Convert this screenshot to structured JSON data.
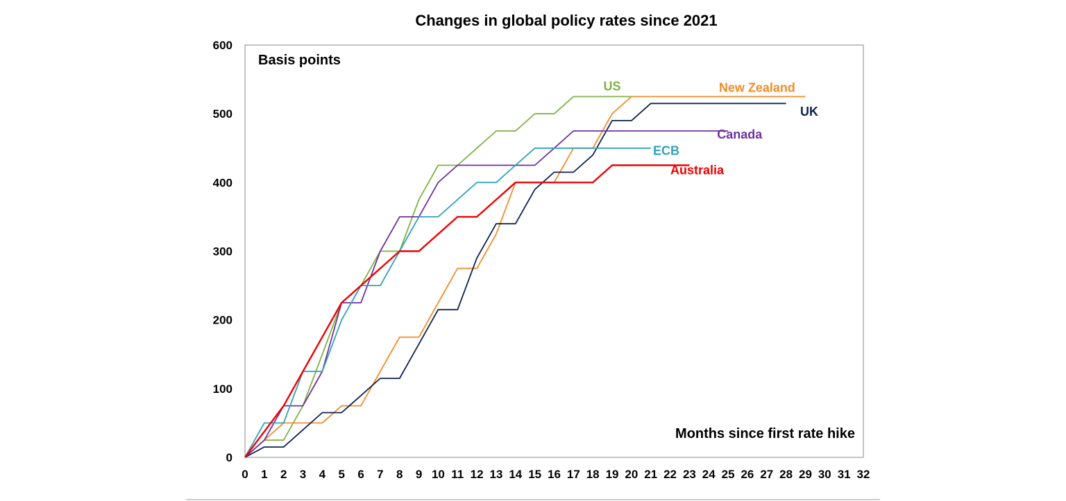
{
  "chart_data": {
    "type": "line",
    "title": "Changes in global policy rates since 2021",
    "ylabel": "Basis points",
    "xlabel": "Months since first rate hike",
    "xlim": [
      0,
      32
    ],
    "ylim": [
      0,
      600
    ],
    "x_ticks": [
      0,
      1,
      2,
      3,
      4,
      5,
      6,
      7,
      8,
      9,
      10,
      11,
      12,
      13,
      14,
      15,
      16,
      17,
      18,
      19,
      20,
      21,
      22,
      23,
      24,
      25,
      26,
      27,
      28,
      29,
      30,
      31,
      32
    ],
    "y_ticks": [
      0,
      100,
      200,
      300,
      400,
      500,
      600
    ],
    "grid": false,
    "series": [
      {
        "name": "US",
        "color": "#7cb342",
        "x": [
          0,
          1,
          2,
          3,
          4,
          5,
          6,
          7,
          8,
          9,
          10,
          11,
          12,
          13,
          14,
          15,
          16,
          17,
          18,
          19,
          20
        ],
        "values": [
          0,
          25,
          25,
          75,
          150,
          225,
          250,
          300,
          300,
          375,
          425,
          425,
          450,
          475,
          475,
          500,
          500,
          525,
          525,
          525,
          525
        ],
        "label_at": [
          19,
          540
        ]
      },
      {
        "name": "New Zealand",
        "color": "#f28c28",
        "x": [
          0,
          1,
          2,
          3,
          4,
          5,
          6,
          7,
          8,
          9,
          10,
          11,
          12,
          13,
          14,
          15,
          16,
          17,
          18,
          19,
          20,
          21,
          22,
          23,
          24,
          25,
          26,
          27,
          28,
          29
        ],
        "values": [
          0,
          25,
          50,
          50,
          50,
          75,
          75,
          125,
          175,
          175,
          225,
          275,
          275,
          325,
          400,
          400,
          400,
          450,
          450,
          500,
          525,
          525,
          525,
          525,
          525,
          525,
          525,
          525,
          525,
          525
        ],
        "label_at": [
          26.5,
          538
        ]
      },
      {
        "name": "UK",
        "color": "#0b2251",
        "x": [
          0,
          1,
          2,
          3,
          4,
          5,
          6,
          7,
          8,
          9,
          10,
          11,
          12,
          13,
          14,
          15,
          16,
          17,
          18,
          19,
          20,
          21,
          22,
          23,
          24,
          25,
          26,
          27,
          28
        ],
        "values": [
          0,
          15,
          15,
          40,
          65,
          65,
          90,
          115,
          115,
          165,
          215,
          215,
          290,
          340,
          340,
          390,
          415,
          415,
          440,
          490,
          490,
          515,
          515,
          515,
          515,
          515,
          515,
          515,
          515
        ],
        "label_at": [
          29.2,
          503
        ]
      },
      {
        "name": "Canada",
        "color": "#7030a0",
        "x": [
          0,
          1,
          2,
          3,
          4,
          5,
          6,
          7,
          8,
          9,
          10,
          11,
          12,
          13,
          14,
          15,
          16,
          17,
          18,
          19,
          20,
          21,
          22,
          23,
          24,
          25
        ],
        "values": [
          0,
          25,
          75,
          75,
          125,
          225,
          225,
          300,
          350,
          350,
          400,
          425,
          425,
          425,
          425,
          425,
          450,
          475,
          475,
          475,
          475,
          475,
          475,
          475,
          475,
          475
        ],
        "label_at": [
          25.6,
          470
        ]
      },
      {
        "name": "ECB",
        "color": "#31a0be",
        "x": [
          0,
          1,
          2,
          3,
          4,
          5,
          6,
          7,
          8,
          9,
          10,
          11,
          12,
          13,
          14,
          15,
          16,
          17,
          18,
          19,
          20,
          21
        ],
        "values": [
          0,
          50,
          50,
          125,
          125,
          200,
          250,
          250,
          300,
          350,
          350,
          375,
          400,
          400,
          425,
          450,
          450,
          450,
          450,
          450,
          450,
          450
        ],
        "label_at": [
          21.8,
          446
        ]
      },
      {
        "name": "Australia",
        "color": "#ee0000",
        "x": [
          0,
          2,
          3,
          5,
          6,
          7,
          8,
          9,
          10,
          11,
          12,
          13,
          14,
          15,
          16,
          17,
          18,
          19,
          20,
          21,
          22,
          23
        ],
        "values": [
          0,
          75,
          125,
          225,
          250,
          275,
          300,
          300,
          325,
          350,
          350,
          375,
          400,
          400,
          400,
          400,
          400,
          425,
          425,
          425,
          425,
          425
        ],
        "label_at": [
          23.4,
          418
        ]
      }
    ]
  }
}
